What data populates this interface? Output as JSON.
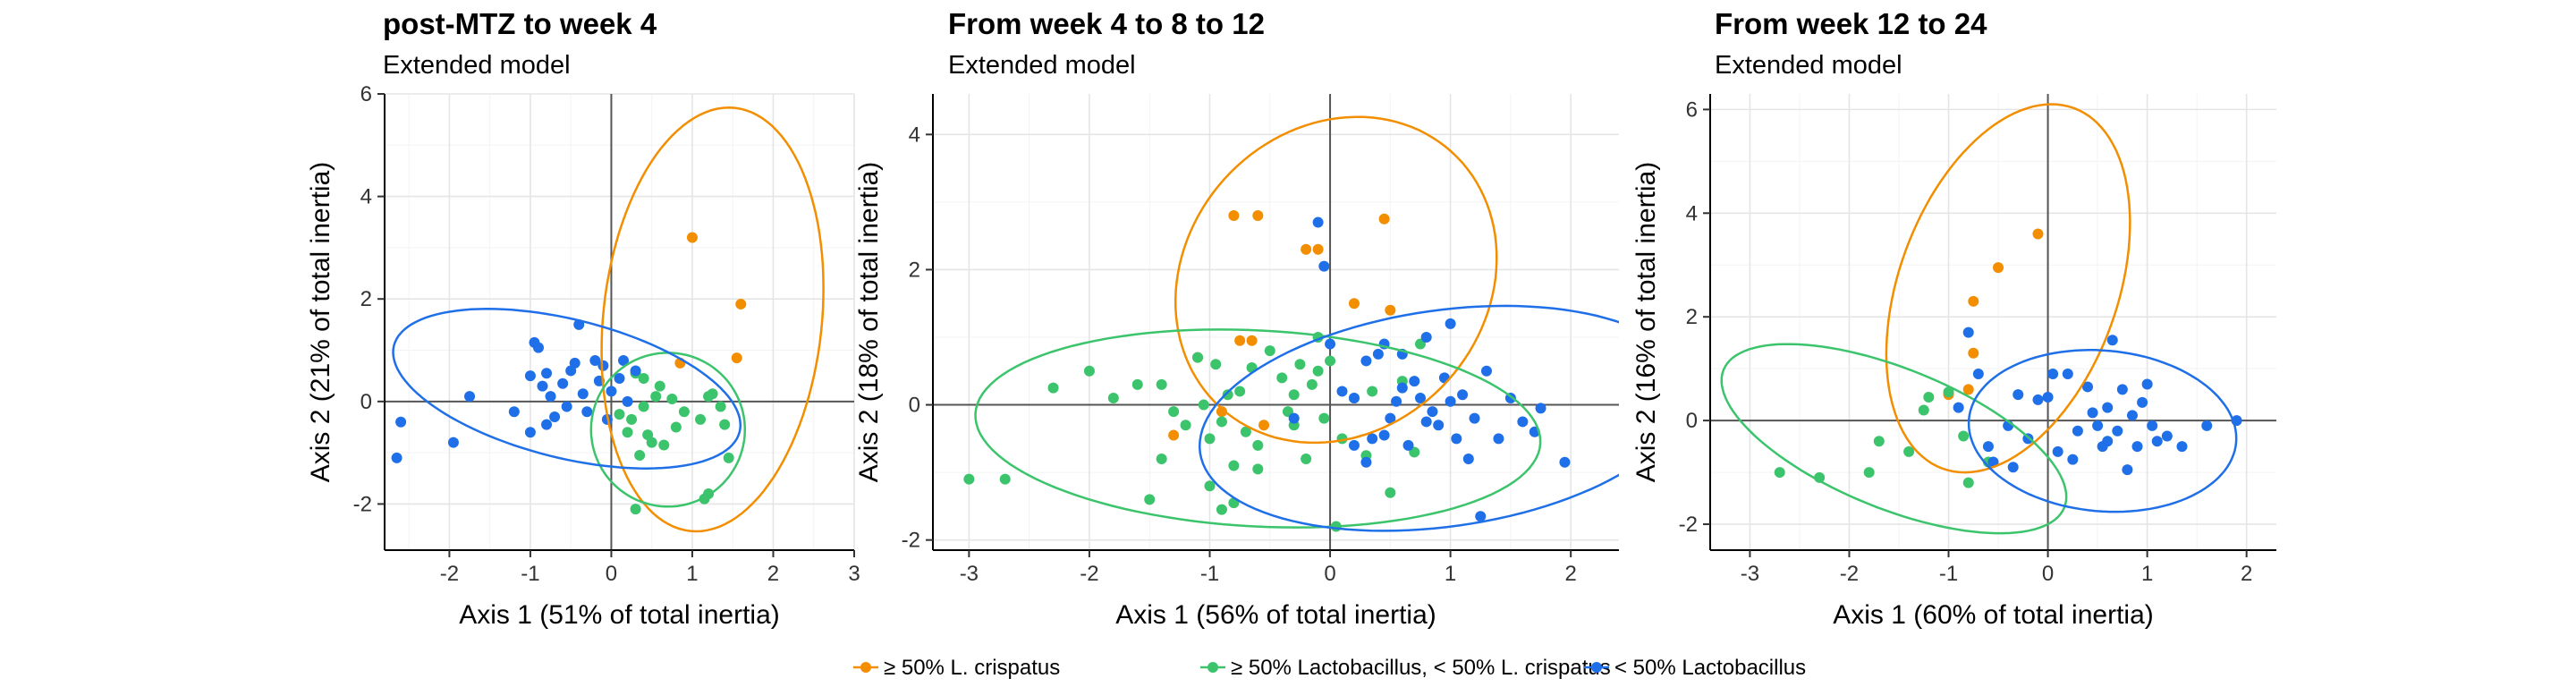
{
  "chart_data": [
    {
      "type": "scatter",
      "title": "post-MTZ to week 4",
      "subtitle": "Extended model",
      "xlabel": "Axis 1 (51% of total inertia)",
      "ylabel": "Axis 2 (21% of total inertia)",
      "xlim": [
        -2.8,
        3.0
      ],
      "ylim": [
        -2.9,
        6.0
      ],
      "xticks": [
        -2,
        -1,
        0,
        1,
        2,
        3
      ],
      "yticks": [
        -2,
        0,
        2,
        4,
        6
      ],
      "series": [
        {
          "group": "crispatus",
          "x": [
            1.0,
            1.6,
            1.55,
            0.85
          ],
          "y": [
            3.2,
            1.9,
            0.85,
            0.75
          ]
        },
        {
          "group": "lacto",
          "x": [
            0.25,
            0.3,
            0.4,
            0.55,
            0.6,
            0.75,
            0.9,
            1.1,
            1.2,
            1.25,
            1.35,
            1.4,
            1.45,
            0.5,
            0.45,
            0.2,
            0.35,
            0.65,
            0.3,
            1.15,
            1.2,
            0.4,
            0.8,
            0.1
          ],
          "y": [
            -0.35,
            0.55,
            -0.1,
            0.1,
            0.3,
            0.05,
            -0.2,
            -0.35,
            0.1,
            0.15,
            -0.1,
            -0.45,
            -1.1,
            -0.8,
            -0.65,
            -0.6,
            -1.05,
            -0.85,
            -2.1,
            -1.9,
            -1.8,
            0.45,
            -0.5,
            -0.25
          ]
        },
        {
          "group": "lowlacto",
          "x": [
            -2.6,
            -2.65,
            -1.95,
            -1.75,
            -1.2,
            -1.0,
            -0.95,
            -0.9,
            -0.85,
            -0.8,
            -0.75,
            -0.7,
            -0.6,
            -0.5,
            -0.45,
            -0.4,
            -0.35,
            -0.3,
            -0.2,
            -0.15,
            -0.1,
            -0.05,
            0.0,
            0.1,
            0.15,
            0.2,
            -1.0,
            -0.8,
            -0.55,
            0.3
          ],
          "y": [
            -0.4,
            -1.1,
            -0.8,
            0.1,
            -0.2,
            0.5,
            1.15,
            1.05,
            0.3,
            0.55,
            0.1,
            -0.3,
            0.35,
            0.6,
            0.75,
            1.5,
            0.15,
            -0.2,
            0.8,
            0.4,
            0.7,
            -0.35,
            0.2,
            0.45,
            0.8,
            0.0,
            -0.6,
            -0.45,
            -0.1,
            0.6
          ]
        }
      ],
      "ellipses": [
        {
          "group": "crispatus",
          "cx": 1.25,
          "cy": 1.6,
          "rx": 1.35,
          "ry": 4.15,
          "angle": 6
        },
        {
          "group": "lacto",
          "cx": 0.7,
          "cy": -0.55,
          "rx": 0.95,
          "ry": 1.5,
          "angle": 8
        },
        {
          "group": "lowlacto",
          "cx": -0.55,
          "cy": 0.25,
          "rx": 2.2,
          "ry": 1.35,
          "angle": 14
        }
      ]
    },
    {
      "type": "scatter",
      "title": "From week 4 to 8 to 12",
      "subtitle": "Extended model",
      "xlabel": "Axis 1 (56% of total inertia)",
      "ylabel": "Axis 2 (18% of total inertia)",
      "xlim": [
        -3.3,
        2.4
      ],
      "ylim": [
        -2.15,
        4.6
      ],
      "xticks": [
        -3,
        -2,
        -1,
        0,
        1,
        2
      ],
      "yticks": [
        -2,
        0,
        2,
        4
      ],
      "series": [
        {
          "group": "crispatus",
          "x": [
            -0.8,
            -0.6,
            -0.2,
            -0.1,
            0.2,
            0.45,
            -0.75,
            -0.65,
            0.5,
            -1.1,
            -0.9,
            -1.3,
            -0.55
          ],
          "y": [
            2.8,
            2.8,
            2.3,
            2.3,
            1.5,
            2.75,
            0.95,
            0.95,
            1.4,
            0.7,
            -0.1,
            -0.45,
            -0.3
          ]
        },
        {
          "group": "lacto",
          "x": [
            -3.0,
            -2.7,
            -2.3,
            -2.0,
            -1.8,
            -1.6,
            -1.5,
            -1.4,
            -1.3,
            -1.2,
            -1.1,
            -1.05,
            -1.0,
            -0.95,
            -0.9,
            -0.85,
            -0.8,
            -0.75,
            -0.7,
            -0.65,
            -0.6,
            -0.5,
            -0.4,
            -0.35,
            -0.3,
            -0.25,
            -0.2,
            -0.15,
            -0.1,
            -0.05,
            0.0,
            0.1,
            0.2,
            0.3,
            0.35,
            0.5,
            0.6,
            0.7,
            0.75,
            -1.4,
            -1.0,
            -0.8,
            -0.6,
            -0.3,
            0.05,
            -0.9,
            -0.1
          ],
          "y": [
            -1.1,
            -1.1,
            0.25,
            0.5,
            0.1,
            0.3,
            -1.4,
            0.3,
            -0.1,
            -0.3,
            0.7,
            0.0,
            -0.5,
            0.6,
            -0.25,
            0.15,
            -0.9,
            0.2,
            -0.4,
            0.55,
            -0.6,
            0.8,
            0.4,
            -0.1,
            0.15,
            0.6,
            -0.8,
            0.3,
            0.5,
            -0.2,
            0.65,
            -0.5,
            0.1,
            -0.75,
            0.2,
            -1.3,
            0.35,
            -0.7,
            0.9,
            -0.8,
            -1.2,
            -1.45,
            -0.95,
            -0.3,
            -1.8,
            -1.55,
            1.0
          ]
        },
        {
          "group": "lowlacto",
          "x": [
            -0.1,
            -0.05,
            0.0,
            0.1,
            0.2,
            0.3,
            0.4,
            0.45,
            0.5,
            0.55,
            0.6,
            0.65,
            0.7,
            0.75,
            0.8,
            0.85,
            0.9,
            0.95,
            1.0,
            1.05,
            1.1,
            1.15,
            1.2,
            1.3,
            1.4,
            1.5,
            1.6,
            1.7,
            1.75,
            1.95,
            0.2,
            0.3,
            0.45,
            0.6,
            0.8,
            1.0,
            1.25,
            -0.3,
            0.35
          ],
          "y": [
            2.7,
            2.05,
            0.9,
            0.2,
            0.1,
            0.65,
            0.75,
            -0.45,
            -0.2,
            0.05,
            0.25,
            -0.6,
            0.35,
            0.1,
            1.0,
            -0.1,
            -0.3,
            0.4,
            1.2,
            -0.5,
            0.15,
            -0.8,
            -0.2,
            0.5,
            -0.5,
            0.1,
            -0.25,
            -0.4,
            -0.05,
            -0.85,
            -0.6,
            -0.85,
            0.9,
            0.75,
            -0.25,
            0.05,
            -1.65,
            -0.2,
            -0.5
          ]
        }
      ],
      "ellipses": [
        {
          "group": "crispatus",
          "cx": 0.05,
          "cy": 1.85,
          "rx": 1.25,
          "ry": 2.55,
          "angle": 42
        },
        {
          "group": "lacto",
          "cx": -0.6,
          "cy": -0.35,
          "rx": 2.35,
          "ry": 1.45,
          "angle": 3
        },
        {
          "group": "lowlacto",
          "cx": 0.95,
          "cy": -0.2,
          "rx": 2.05,
          "ry": 1.6,
          "angle": -8
        }
      ]
    },
    {
      "type": "scatter",
      "title": "From week 12 to 24",
      "subtitle": "Extended model",
      "xlabel": "Axis 1 (60% of total inertia)",
      "ylabel": "Axis 2 (16% of total inertia)",
      "xlim": [
        -3.4,
        2.3
      ],
      "ylim": [
        -2.5,
        6.3
      ],
      "xticks": [
        -3,
        -2,
        -1,
        0,
        1,
        2
      ],
      "yticks": [
        -2,
        0,
        2,
        4,
        6
      ],
      "series": [
        {
          "group": "crispatus",
          "x": [
            -0.1,
            -0.5,
            -0.75,
            -0.75,
            -0.8,
            -1.0
          ],
          "y": [
            3.6,
            2.95,
            2.3,
            1.3,
            0.6,
            0.5
          ]
        },
        {
          "group": "lacto",
          "x": [
            -2.7,
            -2.3,
            -1.8,
            -1.7,
            -1.4,
            -1.25,
            -1.2,
            -0.8,
            -0.6,
            -1.0,
            -0.85
          ],
          "y": [
            -1.0,
            -1.1,
            -1.0,
            -0.4,
            -0.6,
            0.2,
            0.45,
            -1.2,
            -0.8,
            0.55,
            -0.3
          ]
        },
        {
          "group": "lowlacto",
          "x": [
            -0.9,
            -0.8,
            -0.6,
            -0.4,
            -0.3,
            -0.2,
            -0.1,
            0.0,
            0.1,
            0.2,
            0.3,
            0.4,
            0.45,
            0.5,
            0.55,
            0.6,
            0.65,
            0.7,
            0.75,
            0.8,
            0.85,
            0.9,
            0.95,
            1.0,
            1.05,
            1.1,
            1.2,
            1.35,
            1.6,
            1.9,
            -0.55,
            -0.35,
            0.05,
            0.25,
            0.6,
            -0.7
          ],
          "y": [
            0.25,
            1.7,
            -0.5,
            -0.1,
            0.5,
            -0.35,
            0.4,
            0.45,
            -0.6,
            0.9,
            -0.2,
            0.65,
            0.15,
            -0.1,
            -0.5,
            0.25,
            1.55,
            -0.2,
            0.6,
            -0.95,
            0.1,
            -0.5,
            0.35,
            0.7,
            -0.1,
            -0.4,
            -0.3,
            -0.5,
            -0.1,
            0.0,
            -0.8,
            -0.9,
            0.9,
            -0.75,
            -0.4,
            0.9
          ]
        }
      ],
      "ellipses": [
        {
          "group": "crispatus",
          "cx": -0.4,
          "cy": 2.55,
          "rx": 1.1,
          "ry": 3.7,
          "angle": 20
        },
        {
          "group": "lacto",
          "cx": -1.55,
          "cy": -0.35,
          "rx": 1.85,
          "ry": 1.35,
          "angle": 22
        },
        {
          "group": "lowlacto",
          "cx": 0.55,
          "cy": -0.2,
          "rx": 1.35,
          "ry": 1.55,
          "angle": 5
        }
      ]
    }
  ],
  "legend": {
    "placement": "bottom",
    "items": [
      {
        "group": "crispatus",
        "label": "≥ 50% L. crispatus",
        "color": "#F28E00"
      },
      {
        "group": "lacto",
        "label": "≥ 50% Lactobacillus, < 50% L. crispatus",
        "color": "#3CC46C"
      },
      {
        "group": "lowlacto",
        "label": "< 50% Lactobacillus",
        "color": "#1F6FE8"
      }
    ]
  }
}
